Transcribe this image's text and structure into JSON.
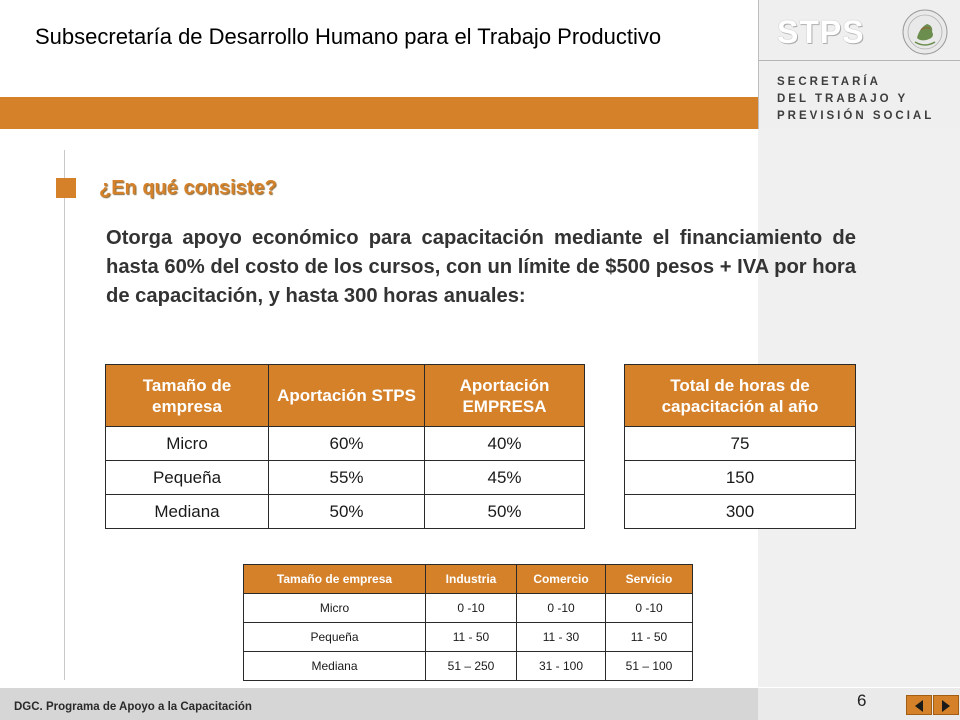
{
  "header": {
    "title": "Subsecretaría de Desarrollo Humano para el Trabajo Productivo"
  },
  "logo": {
    "acronym": "STPS",
    "line1": "SECRETARÍA",
    "line2": "DEL TRABAJO Y",
    "line3": "PREVISIÓN SOCIAL",
    "seal_icon": "mexican-seal-icon"
  },
  "section": {
    "heading": "¿En qué consiste?",
    "paragraph": "Otorga apoyo económico para capacitación mediante el financiamiento de hasta 60% del costo de los cursos, con un límite de $500 pesos + IVA por hora de capacitación, y hasta 300 horas anuales:"
  },
  "main_table": {
    "headers": [
      "Tamaño de empresa",
      "Aportación STPS",
      "Aportación EMPRESA"
    ],
    "rows": [
      [
        "Micro",
        "60%",
        "40%"
      ],
      [
        "Pequeña",
        "55%",
        "45%"
      ],
      [
        "Mediana",
        "50%",
        "50%"
      ]
    ]
  },
  "hours_table": {
    "header": "Total de horas de capacitación al año",
    "rows": [
      "75",
      "150",
      "300"
    ]
  },
  "size_table": {
    "headers": [
      "Tamaño de empresa",
      "Industria",
      "Comercio",
      "Servicio"
    ],
    "rows": [
      [
        "Micro",
        "0 -10",
        "0 -10",
        "0 -10"
      ],
      [
        "Pequeña",
        "11 - 50",
        "11 - 30",
        "11 - 50"
      ],
      [
        "Mediana",
        "51 – 250",
        "31 - 100",
        "51 – 100"
      ]
    ]
  },
  "footer": {
    "text": "DGC. Programa de Apoyo a la Capacitación",
    "page_number": "6",
    "prev_icon": "arrow-left-icon",
    "next_icon": "arrow-right-icon"
  },
  "colors": {
    "accent": "#d4812a",
    "panel": "#f0f0f0"
  }
}
